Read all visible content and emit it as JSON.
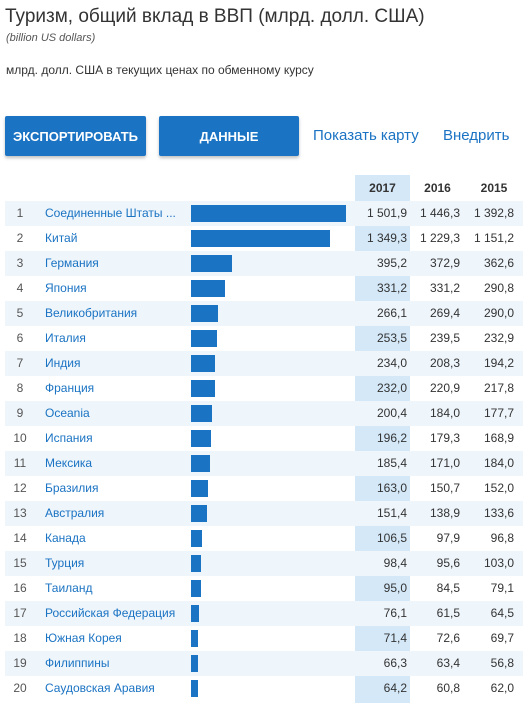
{
  "header": {
    "title": "Туризм, общий вклад в ВВП (млрд. долл. США)",
    "subtitle": "(billion US dollars)",
    "note": "млрд. долл. США в текущих ценах по обменному курсу"
  },
  "toolbar": {
    "export_label": "ЭКСПОРТИРОВАТЬ",
    "data_label": "ДАННЫЕ",
    "map_link": "Показать карту",
    "embed_link": "Внедрить"
  },
  "table": {
    "years": [
      "2017",
      "2016",
      "2015"
    ],
    "bar_max": 1501.9,
    "accent": "#1a73c3",
    "highlight": "#d4e8f8",
    "rows": [
      {
        "rank": "1",
        "name": "Соединенные Штаты ...",
        "bar": 1501.9,
        "v": [
          "1 501,9",
          "1 446,3",
          "1 392,8"
        ]
      },
      {
        "rank": "2",
        "name": "Китай",
        "bar": 1349.3,
        "v": [
          "1 349,3",
          "1 229,3",
          "1 151,2"
        ]
      },
      {
        "rank": "3",
        "name": "Германия",
        "bar": 395.2,
        "v": [
          "395,2",
          "372,9",
          "362,6"
        ]
      },
      {
        "rank": "4",
        "name": "Япония",
        "bar": 331.2,
        "v": [
          "331,2",
          "331,2",
          "290,8"
        ]
      },
      {
        "rank": "5",
        "name": "Великобритания",
        "bar": 266.1,
        "v": [
          "266,1",
          "269,4",
          "290,0"
        ]
      },
      {
        "rank": "6",
        "name": "Италия",
        "bar": 253.5,
        "v": [
          "253,5",
          "239,5",
          "232,9"
        ]
      },
      {
        "rank": "7",
        "name": "Индия",
        "bar": 234.0,
        "v": [
          "234,0",
          "208,3",
          "194,2"
        ]
      },
      {
        "rank": "8",
        "name": "Франция",
        "bar": 232.0,
        "v": [
          "232,0",
          "220,9",
          "217,8"
        ]
      },
      {
        "rank": "9",
        "name": "Oceania",
        "bar": 200.4,
        "v": [
          "200,4",
          "184,0",
          "177,7"
        ]
      },
      {
        "rank": "10",
        "name": "Испания",
        "bar": 196.2,
        "v": [
          "196,2",
          "179,3",
          "168,9"
        ]
      },
      {
        "rank": "11",
        "name": "Мексика",
        "bar": 185.4,
        "v": [
          "185,4",
          "171,0",
          "184,0"
        ]
      },
      {
        "rank": "12",
        "name": "Бразилия",
        "bar": 163.0,
        "v": [
          "163,0",
          "150,7",
          "152,0"
        ]
      },
      {
        "rank": "13",
        "name": "Австралия",
        "bar": 151.4,
        "v": [
          "151,4",
          "138,9",
          "133,6"
        ]
      },
      {
        "rank": "14",
        "name": "Канада",
        "bar": 106.5,
        "v": [
          "106,5",
          "97,9",
          "96,8"
        ]
      },
      {
        "rank": "15",
        "name": "Турция",
        "bar": 98.4,
        "v": [
          "98,4",
          "95,6",
          "103,0"
        ]
      },
      {
        "rank": "16",
        "name": "Таиланд",
        "bar": 95.0,
        "v": [
          "95,0",
          "84,5",
          "79,1"
        ]
      },
      {
        "rank": "17",
        "name": "Российская Федерация",
        "bar": 76.1,
        "v": [
          "76,1",
          "61,5",
          "64,5"
        ]
      },
      {
        "rank": "18",
        "name": "Южная Корея",
        "bar": 71.4,
        "v": [
          "71,4",
          "72,6",
          "69,7"
        ]
      },
      {
        "rank": "19",
        "name": "Филиппины",
        "bar": 66.3,
        "v": [
          "66,3",
          "63,4",
          "56,8"
        ]
      },
      {
        "rank": "20",
        "name": "Саудовская Аравия",
        "bar": 64.2,
        "v": [
          "64,2",
          "60,8",
          "62,0"
        ]
      }
    ]
  }
}
